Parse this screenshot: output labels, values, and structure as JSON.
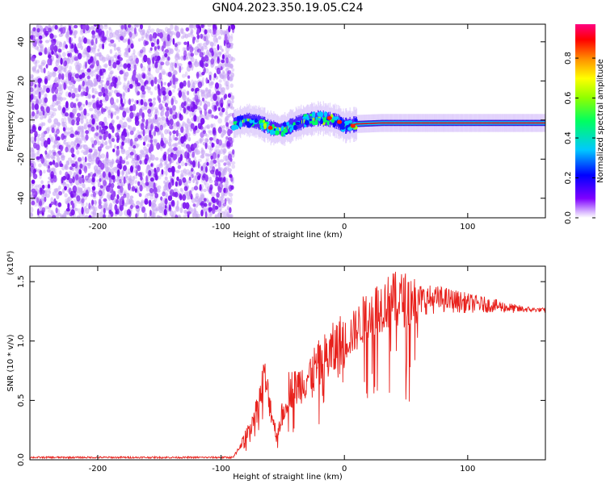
{
  "title": "GN04.2023.350.19.05.C24",
  "chart_data": [
    {
      "type": "heatmap",
      "xlabel": "Height of straight line (km)",
      "ylabel": "Frequency (Hz)",
      "xlim": [
        -255,
        163
      ],
      "ylim": [
        -50,
        49
      ],
      "xticks": [
        -200,
        -100,
        0,
        100
      ],
      "yticks": [
        -40,
        -20,
        0,
        20,
        40
      ],
      "colorbar": {
        "label": "Normalized spectral amplitude",
        "range": [
          0,
          0.97
        ],
        "ticks": [
          "0.0",
          "0.2",
          "0.4",
          "0.6",
          "0.8"
        ],
        "colormap": [
          "#ffffff",
          "#7f00ff",
          "#0000ff",
          "#00c8ff",
          "#00ff00",
          "#ffff00",
          "#ff8000",
          "#ff0000",
          "#ff0080"
        ]
      },
      "noise_region_x": [
        -255,
        -90
      ],
      "signal_center_hz": [
        [
          -90,
          -2
        ],
        [
          -80,
          0
        ],
        [
          -70,
          -1
        ],
        [
          -60,
          -4
        ],
        [
          -50,
          -5
        ],
        [
          -40,
          -2
        ],
        [
          -30,
          0
        ],
        [
          -20,
          1
        ],
        [
          -10,
          0
        ],
        [
          -5,
          -1
        ],
        [
          0,
          -3
        ],
        [
          10,
          -2
        ],
        [
          30,
          -1.5
        ],
        [
          60,
          -1.5
        ],
        [
          100,
          -1.5
        ],
        [
          163,
          -1.5
        ]
      ]
    },
    {
      "type": "line",
      "xlabel": "Height of straight line (km)",
      "ylabel": "SNR (10 * v/v)",
      "yscale_label": "(x10⁴)",
      "xlim": [
        -255,
        163
      ],
      "ylim": [
        0,
        1.63
      ],
      "xticks": [
        -200,
        -100,
        0,
        100
      ],
      "yticks": [
        0.0,
        0.5,
        1.0,
        1.5
      ],
      "ytick_labels": [
        "0.0",
        "0.5",
        "1.0",
        "1.5"
      ],
      "series": [
        {
          "color": "#e8211c",
          "envelope": [
            [
              -255,
              0.02
            ],
            [
              -90,
              0.02
            ],
            [
              -80,
              0.2
            ],
            [
              -70,
              0.45
            ],
            [
              -65,
              0.7
            ],
            [
              -60,
              0.45
            ],
            [
              -55,
              0.2
            ],
            [
              -50,
              0.4
            ],
            [
              -45,
              0.6
            ],
            [
              -40,
              0.6
            ],
            [
              -30,
              0.7
            ],
            [
              -20,
              0.8
            ],
            [
              -10,
              0.9
            ],
            [
              0,
              1.0
            ],
            [
              10,
              1.1
            ],
            [
              20,
              1.25
            ],
            [
              30,
              1.3
            ],
            [
              40,
              1.35
            ],
            [
              60,
              1.35
            ],
            [
              80,
              1.35
            ],
            [
              100,
              1.32
            ],
            [
              120,
              1.3
            ],
            [
              140,
              1.27
            ],
            [
              163,
              1.26
            ]
          ]
        }
      ]
    }
  ]
}
